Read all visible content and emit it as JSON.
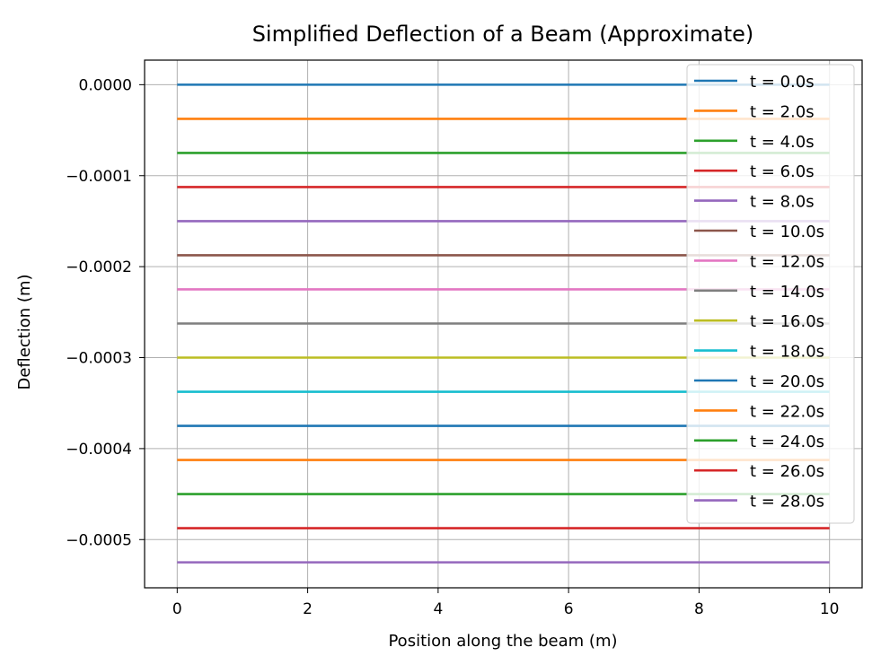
{
  "chart_data": {
    "type": "line",
    "title": "Simplified Deflection of a Beam (Approximate)",
    "xlabel": "Position along the beam (m)",
    "ylabel": "Deflection (m)",
    "xlim": [
      -0.5,
      10.5
    ],
    "ylim": [
      -0.000553,
      2.7e-05
    ],
    "xticks": [
      0,
      2,
      4,
      6,
      8,
      10
    ],
    "xtick_labels": [
      "0",
      "2",
      "4",
      "6",
      "8",
      "10"
    ],
    "yticks": [
      0,
      -0.0001,
      -0.0002,
      -0.0003,
      -0.0004,
      -0.0005
    ],
    "ytick_labels": [
      "0.0000",
      "−0.0001",
      "−0.0002",
      "−0.0003",
      "−0.0004",
      "−0.0005"
    ],
    "grid": true,
    "legend_position": "top-right",
    "x": [
      0,
      10
    ],
    "series": [
      {
        "name": "t = 0.0s",
        "values": [
          0,
          0
        ],
        "color": "#1f77b4"
      },
      {
        "name": "t = 2.0s",
        "values": [
          -3.75e-05,
          -3.75e-05
        ],
        "color": "#ff7f0e"
      },
      {
        "name": "t = 4.0s",
        "values": [
          -7.5e-05,
          -7.5e-05
        ],
        "color": "#2ca02c"
      },
      {
        "name": "t = 6.0s",
        "values": [
          -0.0001125,
          -0.0001125
        ],
        "color": "#d62728"
      },
      {
        "name": "t = 8.0s",
        "values": [
          -0.00015,
          -0.00015
        ],
        "color": "#9467bd"
      },
      {
        "name": "t = 10.0s",
        "values": [
          -0.0001875,
          -0.0001875
        ],
        "color": "#8c564b"
      },
      {
        "name": "t = 12.0s",
        "values": [
          -0.000225,
          -0.000225
        ],
        "color": "#e377c2"
      },
      {
        "name": "t = 14.0s",
        "values": [
          -0.0002625,
          -0.0002625
        ],
        "color": "#7f7f7f"
      },
      {
        "name": "t = 16.0s",
        "values": [
          -0.0003,
          -0.0003
        ],
        "color": "#bcbd22"
      },
      {
        "name": "t = 18.0s",
        "values": [
          -0.0003375,
          -0.0003375
        ],
        "color": "#17becf"
      },
      {
        "name": "t = 20.0s",
        "values": [
          -0.000375,
          -0.000375
        ],
        "color": "#1f77b4"
      },
      {
        "name": "t = 22.0s",
        "values": [
          -0.0004125,
          -0.0004125
        ],
        "color": "#ff7f0e"
      },
      {
        "name": "t = 24.0s",
        "values": [
          -0.00045,
          -0.00045
        ],
        "color": "#2ca02c"
      },
      {
        "name": "t = 26.0s",
        "values": [
          -0.0004875,
          -0.0004875
        ],
        "color": "#d62728"
      },
      {
        "name": "t = 28.0s",
        "values": [
          -0.000525,
          -0.000525
        ],
        "color": "#9467bd"
      }
    ]
  }
}
